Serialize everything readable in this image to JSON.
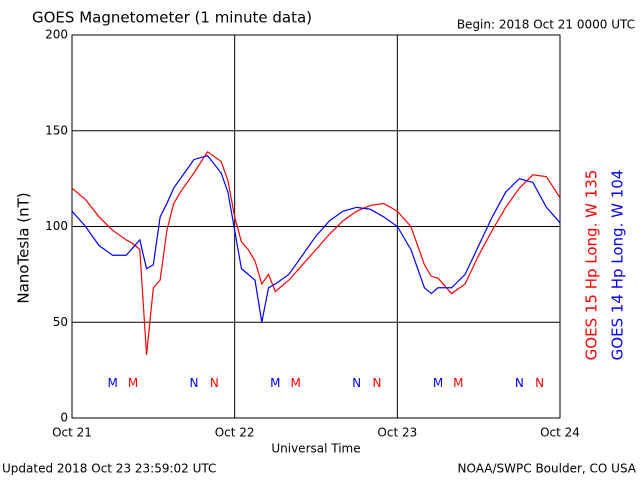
{
  "chart_data": {
    "type": "line",
    "title": "GOES Magnetometer (1 minute data)",
    "subtitle": "Begin:  2018 Oct 21 0000 UTC",
    "ylabel": "NanoTesla (nT)",
    "xlabel": "Universal Time",
    "footer_left": "Updated 2018 Oct 23 23:59:02 UTC",
    "footer_right": "NOAA/SWPC Boulder, CO USA",
    "xlim": [
      0,
      72
    ],
    "xticks": [
      {
        "value": 0,
        "label": "Oct 21"
      },
      {
        "value": 24,
        "label": "Oct 22"
      },
      {
        "value": 48,
        "label": "Oct 23"
      },
      {
        "value": 72,
        "label": "Oct 24"
      }
    ],
    "ylim": [
      0,
      200
    ],
    "yticks": [
      0,
      50,
      100,
      150,
      200
    ],
    "grid": true,
    "x": [
      0,
      2,
      4,
      6,
      8,
      9,
      10,
      11,
      12,
      13,
      14,
      15,
      16,
      18,
      20,
      22,
      23,
      24,
      25,
      26,
      27,
      28,
      29,
      30,
      32,
      34,
      36,
      38,
      40,
      42,
      44,
      46,
      48,
      50,
      51,
      52,
      53,
      54,
      56,
      58,
      60,
      62,
      64,
      66,
      68,
      70,
      72
    ],
    "series": [
      {
        "name": "GOES 15 Hp  Long. W 135",
        "color": "#ff0000",
        "values": [
          120,
          114,
          105,
          98,
          93,
          91,
          88,
          33,
          68,
          72,
          98,
          112,
          118,
          128,
          139,
          134,
          124,
          105,
          92,
          88,
          82,
          70,
          75,
          66,
          72,
          80,
          88,
          96,
          103,
          108,
          111,
          112,
          108,
          100,
          90,
          80,
          74,
          73,
          65,
          70,
          85,
          98,
          110,
          120,
          127,
          126,
          115
        ]
      },
      {
        "name": "GOES 14 Hp  Long. W 104",
        "color": "#0000ff",
        "values": [
          108,
          100,
          90,
          85,
          85,
          89,
          93,
          78,
          80,
          105,
          112,
          120,
          125,
          135,
          137,
          128,
          118,
          98,
          78,
          75,
          72,
          50,
          68,
          70,
          75,
          85,
          95,
          103,
          108,
          110,
          109,
          105,
          100,
          88,
          78,
          68,
          65,
          68,
          68,
          75,
          90,
          105,
          118,
          125,
          123,
          110,
          102
        ]
      }
    ],
    "annotations": [
      {
        "text": "M",
        "x": 6,
        "y": 18,
        "color": "#0000ff"
      },
      {
        "text": "M",
        "x": 9,
        "y": 18,
        "color": "#ff0000"
      },
      {
        "text": "N",
        "x": 18,
        "y": 18,
        "color": "#0000ff"
      },
      {
        "text": "N",
        "x": 21,
        "y": 18,
        "color": "#ff0000"
      },
      {
        "text": "M",
        "x": 30,
        "y": 18,
        "color": "#0000ff"
      },
      {
        "text": "M",
        "x": 33,
        "y": 18,
        "color": "#ff0000"
      },
      {
        "text": "N",
        "x": 42,
        "y": 18,
        "color": "#0000ff"
      },
      {
        "text": "N",
        "x": 45,
        "y": 18,
        "color": "#ff0000"
      },
      {
        "text": "M",
        "x": 54,
        "y": 18,
        "color": "#0000ff"
      },
      {
        "text": "M",
        "x": 57,
        "y": 18,
        "color": "#ff0000"
      },
      {
        "text": "N",
        "x": 66,
        "y": 18,
        "color": "#0000ff"
      },
      {
        "text": "N",
        "x": 69,
        "y": 18,
        "color": "#ff0000"
      }
    ]
  }
}
